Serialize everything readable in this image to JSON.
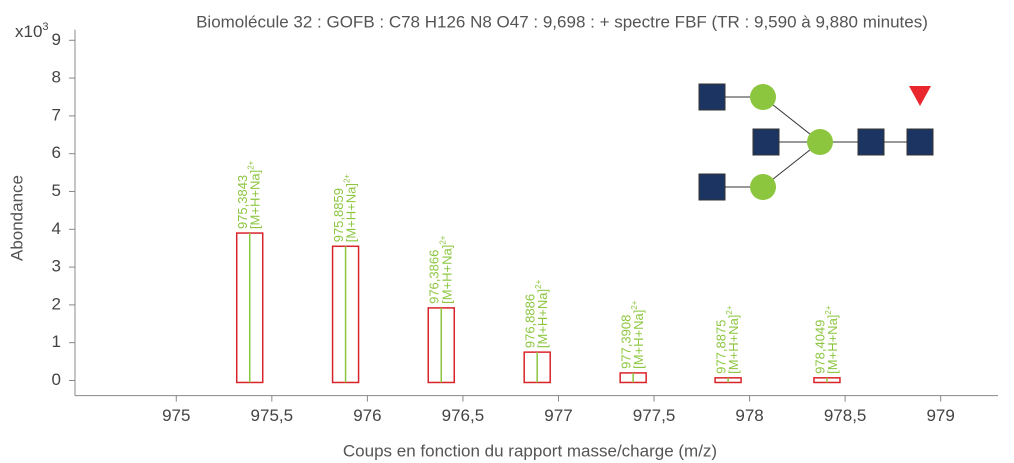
{
  "chart_data": {
    "type": "bar",
    "title": "Biomolécule 32 : GOFB : C78 H126 N8 O47 : 9,698 : + spectre FBF (TR : 9,590 à 9,880 minutes)",
    "y_multiplier": "x10",
    "y_multiplier_exp": "3",
    "xlabel": "Coups en fonction du rapport masse/charge (m/z)",
    "ylabel": "Abondance",
    "x": [
      975.3843,
      975.8859,
      976.3866,
      976.8886,
      977.3908,
      977.8875,
      978.4049
    ],
    "values": [
      3.9,
      3.55,
      1.92,
      0.75,
      0.2,
      0.07,
      0.07
    ],
    "value_labels": [
      "975,3843",
      "975,8859",
      "976,3866",
      "976,8886",
      "977,3908",
      "977,8875",
      "978,4049"
    ],
    "ion_label": "[M+H+Na]",
    "ion_charge": "2+",
    "color": "#d9232a",
    "center_color": "#8cc63f",
    "xlim": [
      974.47,
      979.3
    ],
    "ylim": [
      -0.4,
      9.6
    ],
    "xticks": [
      975,
      {
        "value": 975.5,
        "label": "975,5"
      },
      976,
      {
        "value": 976.5,
        "label": "976,5"
      },
      977,
      {
        "value": 977.5,
        "label": "977,5"
      },
      978,
      {
        "value": 978.5,
        "label": "978,5"
      },
      979
    ],
    "yticks": [
      0,
      1,
      2,
      3,
      4,
      5,
      6,
      7,
      8,
      9
    ]
  }
}
